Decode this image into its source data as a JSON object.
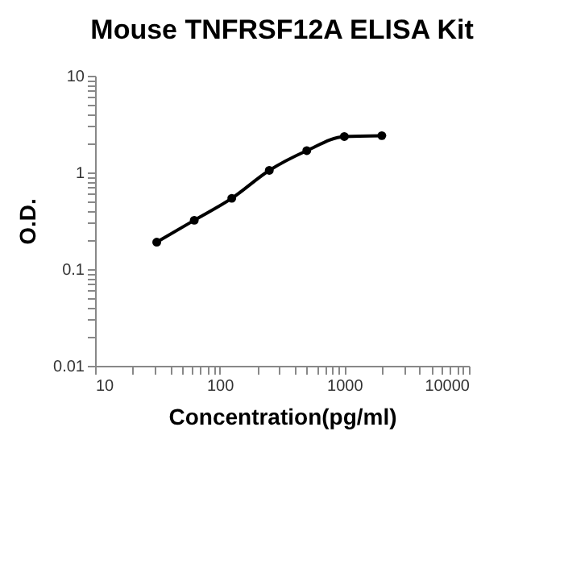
{
  "chart_data": {
    "type": "line",
    "title": "Mouse TNFRSF12A ELISA Kit",
    "xlabel": "Concentration(pg/ml)",
    "ylabel": "O.D.",
    "x": [
      31.25,
      62.5,
      125,
      250,
      500,
      1000,
      2000
    ],
    "series": [
      {
        "color": "#000000",
        "values": [
          0.19,
          0.32,
          0.54,
          1.05,
          1.68,
          2.35,
          2.4
        ]
      }
    ],
    "log": "xy",
    "xlim": [
      10,
      10000
    ],
    "ylim": [
      0.01,
      10
    ],
    "xticks": [
      10,
      {
        "value": 20,
        "label": null
      },
      {
        "value": 30,
        "label": null
      },
      {
        "value": 40,
        "label": null
      },
      {
        "value": 50,
        "label": null
      },
      {
        "value": 60,
        "label": null
      },
      {
        "value": 70,
        "label": null
      },
      {
        "value": 80,
        "label": null
      },
      {
        "value": 90,
        "label": null
      },
      100,
      {
        "value": 200,
        "label": null
      },
      {
        "value": 300,
        "label": null
      },
      {
        "value": 400,
        "label": null
      },
      {
        "value": 500,
        "label": null
      },
      {
        "value": 600,
        "label": null
      },
      {
        "value": 700,
        "label": null
      },
      {
        "value": 800,
        "label": null
      },
      {
        "value": 900,
        "label": null
      },
      1000,
      {
        "value": 2000,
        "label": null
      },
      {
        "value": 3000,
        "label": null
      },
      {
        "value": 4000,
        "label": null
      },
      {
        "value": 5000,
        "label": null
      },
      {
        "value": 6000,
        "label": null
      },
      {
        "value": 7000,
        "label": null
      },
      {
        "value": 8000,
        "label": null
      },
      {
        "value": 9000,
        "label": null
      },
      10000
    ],
    "yticks": [
      0.01,
      {
        "value": 0.02,
        "label": null
      },
      {
        "value": 0.03,
        "label": null
      },
      {
        "value": 0.04,
        "label": null
      },
      {
        "value": 0.05,
        "label": null
      },
      {
        "value": 0.06,
        "label": null
      },
      {
        "value": 0.07,
        "label": null
      },
      {
        "value": 0.08,
        "label": null
      },
      {
        "value": 0.09,
        "label": null
      },
      0.1,
      {
        "value": 0.2,
        "label": null
      },
      {
        "value": 0.3,
        "label": null
      },
      {
        "value": 0.4,
        "label": null
      },
      {
        "value": 0.5,
        "label": null
      },
      {
        "value": 0.6,
        "label": null
      },
      {
        "value": 0.7,
        "label": null
      },
      {
        "value": 0.8,
        "label": null
      },
      {
        "value": 0.9,
        "label": null
      },
      1,
      {
        "value": 2,
        "label": null
      },
      {
        "value": 3,
        "label": null
      },
      {
        "value": 4,
        "label": null
      },
      {
        "value": 5,
        "label": null
      },
      {
        "value": 6,
        "label": null
      },
      {
        "value": 7,
        "label": null
      },
      {
        "value": 8,
        "label": null
      },
      {
        "value": 9,
        "label": null
      },
      10
    ],
    "marker": "circle",
    "line_style": "solid",
    "grid": false
  }
}
